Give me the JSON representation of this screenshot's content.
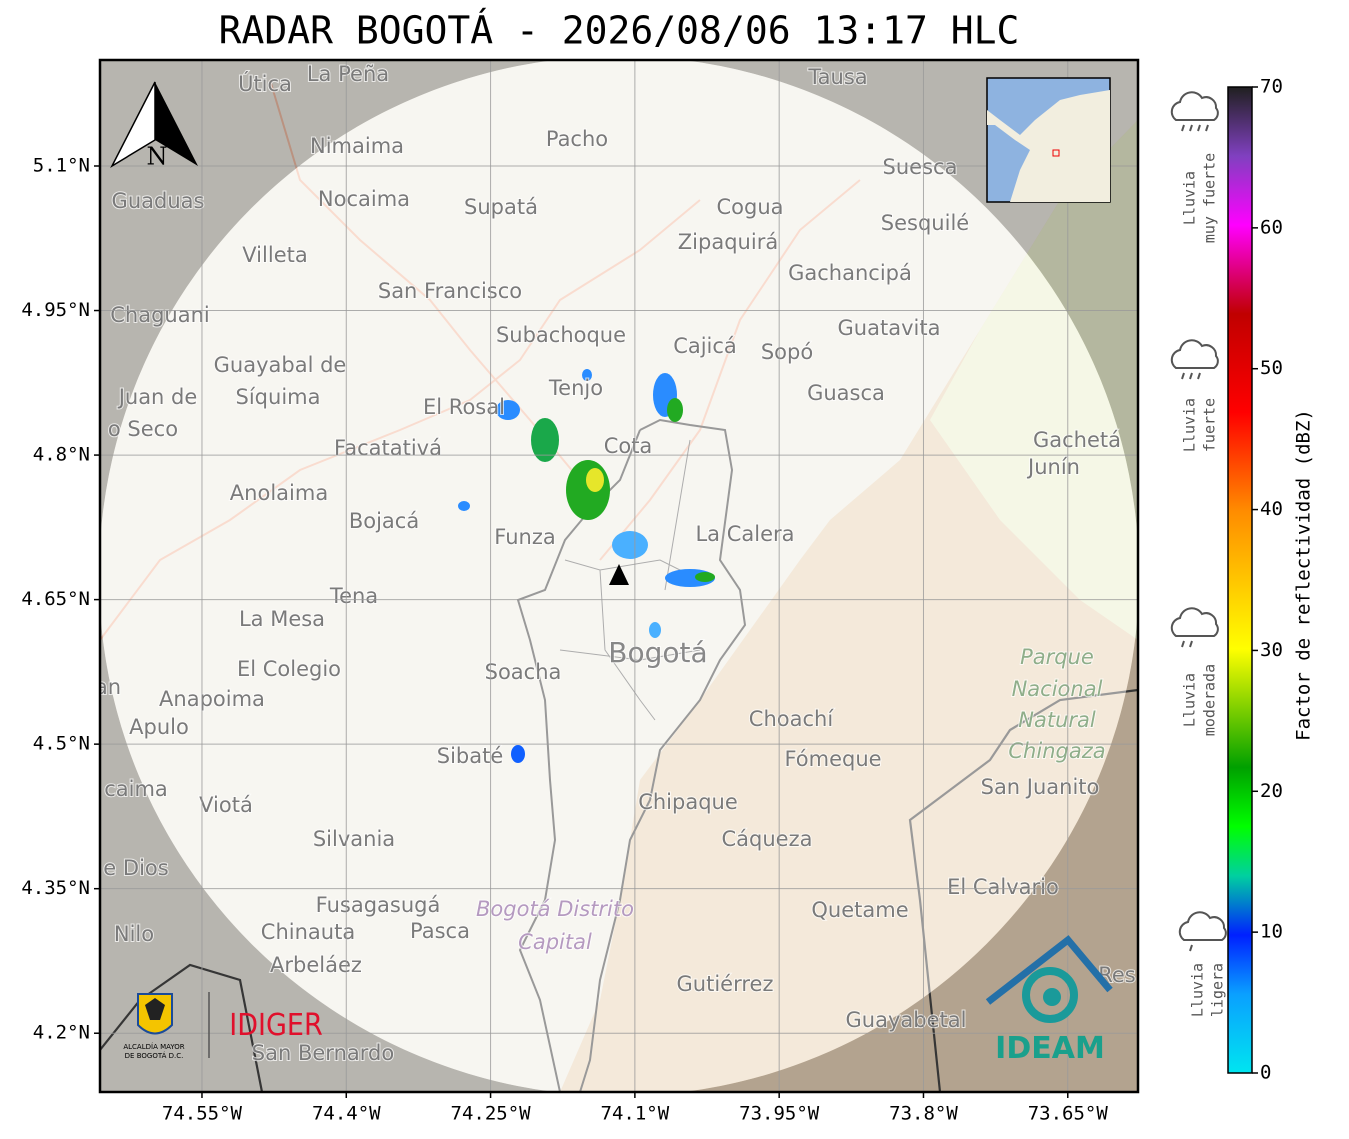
{
  "title": "RADAR BOGOTÁ - 2026/08/06 13:17 HLC",
  "compass": "N",
  "map": {
    "xlim": [
      -74.656,
      -73.577
    ],
    "ylim": [
      4.139,
      5.21
    ],
    "xticks": [
      {
        "value": -74.55,
        "label": "74.55°W"
      },
      {
        "value": -74.4,
        "label": "74.4°W"
      },
      {
        "value": -74.25,
        "label": "74.25°W"
      },
      {
        "value": -74.1,
        "label": "74.1°W"
      },
      {
        "value": -73.95,
        "label": "73.95°W"
      },
      {
        "value": -73.8,
        "label": "73.8°W"
      },
      {
        "value": -73.65,
        "label": "73.65°W"
      }
    ],
    "yticks": [
      {
        "value": 5.1,
        "label": "5.1°N"
      },
      {
        "value": 4.95,
        "label": "4.95°N"
      },
      {
        "value": 4.8,
        "label": "4.8°N"
      },
      {
        "value": 4.65,
        "label": "4.65°N"
      },
      {
        "value": 4.5,
        "label": "4.5°N"
      },
      {
        "value": 4.35,
        "label": "4.35°N"
      },
      {
        "value": 4.2,
        "label": "4.2°N"
      }
    ],
    "places": [
      "La Peña",
      "Útica",
      "Tausa",
      "Pacho",
      "Nimaima",
      "Suesca",
      "Guaduas",
      "Nocaima",
      "Supatá",
      "Cogua",
      "Sesquilé",
      "Zipaquirá",
      "Villeta",
      "Gachancipá",
      "San Francisco",
      "Chaguani",
      "Guatavita",
      "Subachoque",
      "Cajicá",
      "Sopó",
      "Guayabal de",
      "Síquima",
      "Juan de",
      "Tenjo",
      "Guasca",
      "El Rosal",
      "o Seco",
      "Facatativá",
      "Cota",
      "Gachetá",
      "Junín",
      "Anolaima",
      "Bojacá",
      "Funza",
      "La Calera",
      "Tena",
      "La Mesa",
      "Parque",
      "Bogotá",
      "El Colegio",
      "Soacha",
      "Nacional",
      "an",
      "Anapoima",
      "Natural",
      "Apulo",
      "Choachí",
      "Chingaza",
      "Sibaté",
      "Fómeque",
      "San Juanito",
      "caima",
      "Viotá",
      "Chipaque",
      "Silvania",
      "Cáqueza",
      "e Dios",
      "El Calvario",
      "Fusagasugá",
      "Bogotá Distrito",
      "Quetame",
      "Nilo",
      "Chinauta",
      "Pasca",
      "Capital",
      "Arbeláez",
      "Res",
      "Gutiérrez",
      "Guayabetal",
      "San Bernardo"
    ]
  },
  "colorbar": {
    "label": "Factor de reflectividad (dBZ)",
    "lim": [
      0,
      70
    ],
    "ticks": [
      0,
      10,
      20,
      30,
      40,
      50,
      60,
      70
    ]
  },
  "rain_levels": [
    [
      "Lluvia",
      "muy fuerte"
    ],
    [
      "Lluvia",
      "fuerte"
    ],
    [
      "Lluvia",
      "moderada"
    ],
    [
      "Lluvia",
      "ligera"
    ]
  ],
  "logos": {
    "alcaldia": [
      "ALCALDÍA MAYOR",
      "DE BOGOTÁ D.C."
    ],
    "idiger": "IDIGER",
    "ideam": "IDEAM"
  }
}
